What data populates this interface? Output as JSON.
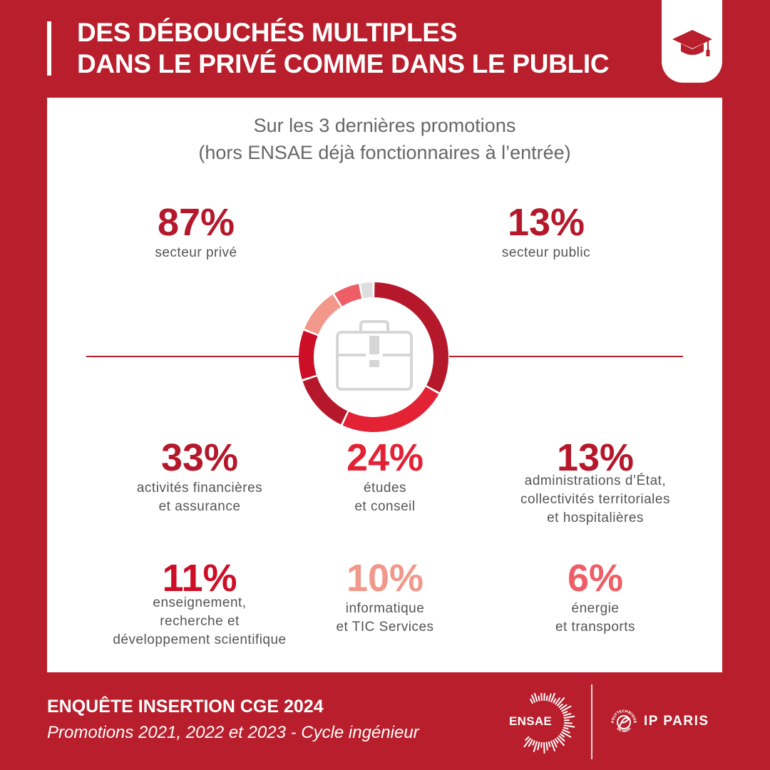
{
  "header": {
    "title_line1": "DES DÉBOUCHÉS MULTIPLES",
    "title_line2": "DANS LE PRIVÉ COMME DANS LE PUBLIC"
  },
  "panel": {
    "subtitle_line1": "Sur les 3 dernières promotions",
    "subtitle_line2": "(hors ENSAE déjà fonctionnaires à l’entrée)"
  },
  "chart_data": {
    "type": "pie",
    "title": "",
    "split": [
      {
        "value": "87%",
        "label": "secteur privé"
      },
      {
        "value": "13%",
        "label": "secteur public"
      }
    ],
    "slices": [
      {
        "value": 33,
        "pct": "33%",
        "label_lines": [
          "activités financières",
          "et assurance"
        ],
        "color": "#b5182b"
      },
      {
        "value": 24,
        "pct": "24%",
        "label_lines": [
          "études",
          "et conseil"
        ],
        "color": "#e42236"
      },
      {
        "value": 13,
        "pct": "13%",
        "label_lines": [
          "administrations d’État,",
          "collectivités territoriales",
          "et hospitalières"
        ],
        "color": "#b5182b"
      },
      {
        "value": 11,
        "pct": "11%",
        "label_lines": [
          "enseignement,",
          "recherche et",
          "développement scientifique"
        ],
        "color": "#cc0f27"
      },
      {
        "value": 10,
        "pct": "10%",
        "label_lines": [
          "informatique",
          "et TIC Services"
        ],
        "color": "#f2988a"
      },
      {
        "value": 6,
        "pct": "6%",
        "label_lines": [
          "énergie",
          "et transports"
        ],
        "color": "#ee5e66"
      },
      {
        "value": 3,
        "pct": "",
        "label_lines": [],
        "color": "#dedede"
      }
    ],
    "center_icon": "briefcase-icon",
    "grid": false
  },
  "footer": {
    "survey_title": "ENQUÊTE INSERTION CGE 2024",
    "survey_subtitle": "Promotions 2021, 2022 et 2023 - Cycle ingénieur"
  },
  "logos": {
    "ensae": "ENSAE",
    "ip_paris": "IP PARIS",
    "ip_paris_ring_top": "POLYTECHNIQUE",
    "ip_paris_ring_bottom": "DE PARIS"
  },
  "icons": {
    "header": "graduation-cap-icon",
    "center": "briefcase-icon"
  },
  "colors": {
    "background": "#b81e2b",
    "panel": "#ffffff",
    "primary_red": "#b81e2b"
  }
}
